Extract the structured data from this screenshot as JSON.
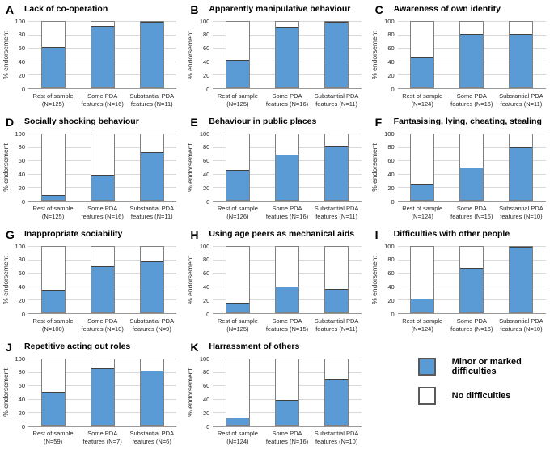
{
  "figure": {
    "ylabel": "% endorsement",
    "colors": {
      "bar_fill": "#5B9BD5",
      "bar_border": "#808080",
      "segment_divider": "#404040",
      "gridline": "#D9D9D9",
      "axis_line": "#999999"
    }
  },
  "legend": {
    "items": [
      {
        "label": "Minor or marked difficulties",
        "color": "#5B9BD5"
      },
      {
        "label": "No difficulties",
        "color": "#FFFFFF"
      }
    ]
  },
  "chart_data": [
    {
      "type": "bar",
      "panel": "A",
      "title": "Lack of co-operation",
      "ylabel": "% endorsement",
      "ylim": [
        0,
        100
      ],
      "yticks": [
        0,
        20,
        40,
        60,
        80,
        100
      ],
      "grid": true,
      "categories": [
        [
          "Rest of sample",
          "(N=125)"
        ],
        [
          "Some PDA",
          "features (N=16)"
        ],
        [
          "Substantial PDA",
          "features (N=11)"
        ]
      ],
      "series": [
        {
          "name": "Minor or marked difficulties",
          "values": [
            62,
            94,
            100
          ]
        },
        {
          "name": "No difficulties",
          "values": [
            38,
            6,
            0
          ]
        }
      ]
    },
    {
      "type": "bar",
      "panel": "B",
      "title": "Apparently manipulative behaviour",
      "ylabel": "% endorsement",
      "ylim": [
        0,
        100
      ],
      "yticks": [
        0,
        20,
        40,
        60,
        80,
        100
      ],
      "grid": true,
      "categories": [
        [
          "Rest of sample",
          "(N=125)"
        ],
        [
          "Some PDA",
          "features (N=16)"
        ],
        [
          "Substantial PDA",
          "features (N=11)"
        ]
      ],
      "series": [
        {
          "name": "Minor or marked difficulties",
          "values": [
            42,
            93,
            100
          ]
        },
        {
          "name": "No difficulties",
          "values": [
            58,
            7,
            0
          ]
        }
      ]
    },
    {
      "type": "bar",
      "panel": "C",
      "title": "Awareness of own identity",
      "ylabel": "% endorsement",
      "ylim": [
        0,
        100
      ],
      "yticks": [
        0,
        20,
        40,
        60,
        80,
        100
      ],
      "grid": true,
      "categories": [
        [
          "Rest of sample",
          "(N=124)"
        ],
        [
          "Some PDA",
          "features (N=16)"
        ],
        [
          "Substantial PDA",
          "features (N=11)"
        ]
      ],
      "series": [
        {
          "name": "Minor or marked difficulties",
          "values": [
            46,
            81,
            82
          ]
        },
        {
          "name": "No difficulties",
          "values": [
            54,
            19,
            18
          ]
        }
      ]
    },
    {
      "type": "bar",
      "panel": "D",
      "title": "Socially shocking behaviour",
      "ylabel": "% endorsement",
      "ylim": [
        0,
        100
      ],
      "yticks": [
        0,
        20,
        40,
        60,
        80,
        100
      ],
      "grid": true,
      "categories": [
        [
          "Rest of sample",
          "(N=125)"
        ],
        [
          "Some PDA",
          "features (N=16)"
        ],
        [
          "Substantial PDA",
          "features (N=11)"
        ]
      ],
      "series": [
        {
          "name": "Minor or marked difficulties",
          "values": [
            8,
            38,
            73
          ]
        },
        {
          "name": "No difficulties",
          "values": [
            92,
            62,
            27
          ]
        }
      ]
    },
    {
      "type": "bar",
      "panel": "E",
      "title": "Behaviour in public places",
      "ylabel": "% endorsement",
      "ylim": [
        0,
        100
      ],
      "yticks": [
        0,
        20,
        40,
        60,
        80,
        100
      ],
      "grid": true,
      "categories": [
        [
          "Rest of sample",
          "(N=126)"
        ],
        [
          "Some PDA",
          "features (N=16)"
        ],
        [
          "Substantial PDA",
          "features (N=11)"
        ]
      ],
      "series": [
        {
          "name": "Minor or marked difficulties",
          "values": [
            46,
            69,
            82
          ]
        },
        {
          "name": "No difficulties",
          "values": [
            54,
            31,
            18
          ]
        }
      ]
    },
    {
      "type": "bar",
      "panel": "F",
      "title": "Fantasising, lying, cheating, stealing",
      "ylabel": "% endorsement",
      "ylim": [
        0,
        100
      ],
      "yticks": [
        0,
        20,
        40,
        60,
        80,
        100
      ],
      "grid": true,
      "categories": [
        [
          "Rest of sample",
          "(N=124)"
        ],
        [
          "Some PDA",
          "features (N=16)"
        ],
        [
          "Substantial PDA",
          "features (N=10)"
        ]
      ],
      "series": [
        {
          "name": "Minor or marked difficulties",
          "values": [
            25,
            50,
            80
          ]
        },
        {
          "name": "No difficulties",
          "values": [
            75,
            50,
            20
          ]
        }
      ]
    },
    {
      "type": "bar",
      "panel": "G",
      "title": "Inappropriate sociability",
      "ylabel": "% endorsement",
      "ylim": [
        0,
        100
      ],
      "yticks": [
        0,
        20,
        40,
        60,
        80,
        100
      ],
      "grid": true,
      "categories": [
        [
          "Rest of sample",
          "(N=100)"
        ],
        [
          "Some PDA",
          "features (N=10)"
        ],
        [
          "Substantial PDA",
          "features (N=9)"
        ]
      ],
      "series": [
        {
          "name": "Minor or marked difficulties",
          "values": [
            34,
            70,
            78
          ]
        },
        {
          "name": "No difficulties",
          "values": [
            66,
            30,
            22
          ]
        }
      ]
    },
    {
      "type": "bar",
      "panel": "H",
      "title": "Using age peers as mechanical aids",
      "ylabel": "% endorsement",
      "ylim": [
        0,
        100
      ],
      "yticks": [
        0,
        20,
        40,
        60,
        80,
        100
      ],
      "grid": true,
      "categories": [
        [
          "Rest of sample",
          "(N=125)"
        ],
        [
          "Some PDA",
          "features (N=15)"
        ],
        [
          "Substantial PDA",
          "features (N=11)"
        ]
      ],
      "series": [
        {
          "name": "Minor or marked difficulties",
          "values": [
            15,
            40,
            36
          ]
        },
        {
          "name": "No difficulties",
          "values": [
            85,
            60,
            64
          ]
        }
      ]
    },
    {
      "type": "bar",
      "panel": "I",
      "title": "Difficulties with other people",
      "ylabel": "% endorsement",
      "ylim": [
        0,
        100
      ],
      "yticks": [
        0,
        20,
        40,
        60,
        80,
        100
      ],
      "grid": true,
      "categories": [
        [
          "Rest of sample",
          "(N=124)"
        ],
        [
          "Some PDA",
          "features (N=16)"
        ],
        [
          "Substantial PDA",
          "features (N=10)"
        ]
      ],
      "series": [
        {
          "name": "Minor or marked difficulties",
          "values": [
            21,
            68,
            100
          ]
        },
        {
          "name": "No difficulties",
          "values": [
            79,
            32,
            0
          ]
        }
      ]
    },
    {
      "type": "bar",
      "panel": "J",
      "title": "Repetitive acting out roles",
      "ylabel": "% endorsement",
      "ylim": [
        0,
        100
      ],
      "yticks": [
        0,
        20,
        40,
        60,
        80,
        100
      ],
      "grid": true,
      "categories": [
        [
          "Rest of sample",
          "(N=59)"
        ],
        [
          "Some PDA",
          "features (N=7)"
        ],
        [
          "Substantial PDA",
          "features (N=6)"
        ]
      ],
      "series": [
        {
          "name": "Minor or marked difficulties",
          "values": [
            51,
            86,
            83
          ]
        },
        {
          "name": "No difficulties",
          "values": [
            49,
            14,
            17
          ]
        }
      ]
    },
    {
      "type": "bar",
      "panel": "K",
      "title": "Harrassment of others",
      "ylabel": "% endorsement",
      "ylim": [
        0,
        100
      ],
      "yticks": [
        0,
        20,
        40,
        60,
        80,
        100
      ],
      "grid": true,
      "categories": [
        [
          "Rest of sample",
          "(N=124)"
        ],
        [
          "Some PDA",
          "features (N=16)"
        ],
        [
          "Substantial PDA",
          "features (N=10)"
        ]
      ],
      "series": [
        {
          "name": "Minor or marked difficulties",
          "values": [
            11,
            38,
            70
          ]
        },
        {
          "name": "No difficulties",
          "values": [
            89,
            62,
            30
          ]
        }
      ]
    }
  ]
}
